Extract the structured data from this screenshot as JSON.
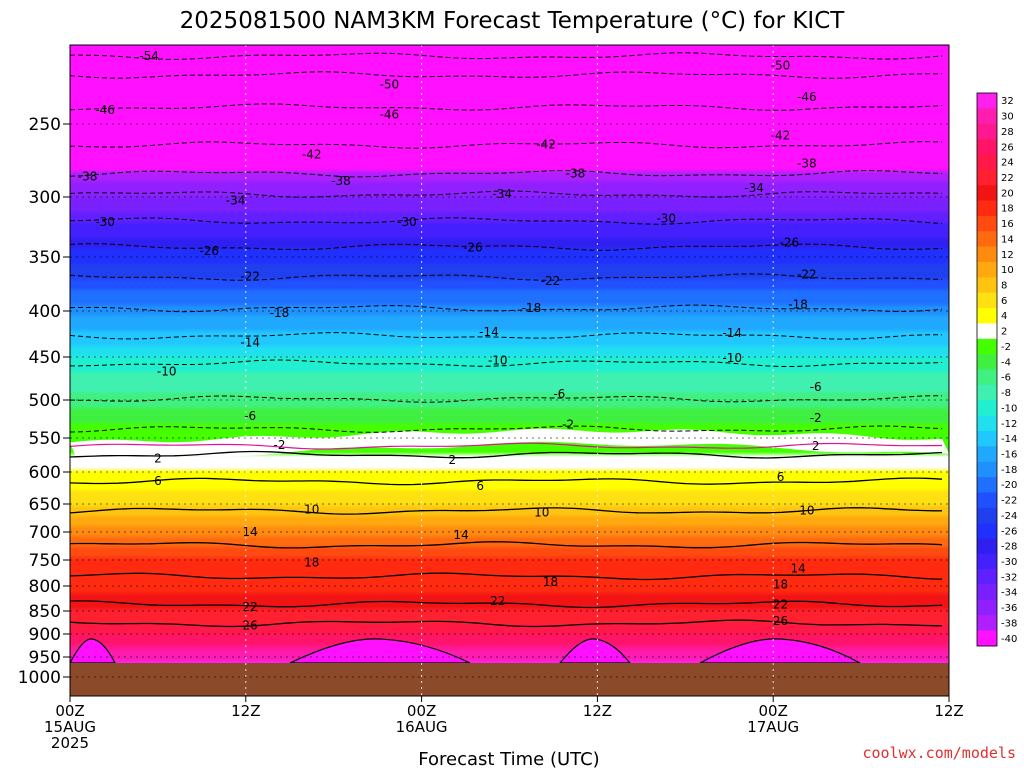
{
  "chart_data": {
    "type": "heatmap",
    "title": "2025081500 NAM3KM Forecast Temperature (°C) for KICT",
    "xlabel": "Forecast Time (UTC)",
    "ylabel": "",
    "credit": "coolwx.com/models",
    "x_ticks": [
      {
        "hour": 0,
        "lines": [
          "00Z",
          "15AUG",
          "2025"
        ]
      },
      {
        "hour": 12,
        "lines": [
          "12Z"
        ]
      },
      {
        "hour": 24,
        "lines": [
          "00Z",
          "16AUG"
        ]
      },
      {
        "hour": 36,
        "lines": [
          "12Z"
        ]
      },
      {
        "hour": 48,
        "lines": [
          "00Z",
          "17AUG"
        ]
      },
      {
        "hour": 60,
        "lines": [
          "12Z"
        ]
      }
    ],
    "xlim_hours": [
      0,
      60
    ],
    "y_ticks_hpa": [
      250,
      300,
      350,
      400,
      450,
      500,
      550,
      600,
      650,
      700,
      750,
      800,
      850,
      900,
      950,
      1000
    ],
    "ylim_hpa": [
      200,
      1050
    ],
    "ground_level_hpa": 965,
    "colorbar": {
      "labels": [
        "32",
        "30",
        "28",
        "26",
        "24",
        "22",
        "20",
        "18",
        "16",
        "14",
        "12",
        "10",
        "8",
        "6",
        "4",
        "2",
        "-2",
        "-4",
        "-6",
        "-8",
        "-10",
        "-12",
        "-14",
        "-16",
        "-18",
        "-20",
        "-22",
        "-24",
        "-26",
        "-28",
        "-30",
        "-32",
        "-34",
        "-36",
        "-38",
        "-40"
      ],
      "colors": [
        "#ff20f0",
        "#ff1cb0",
        "#ff1890",
        "#ff1468",
        "#ff1848",
        "#ff2030",
        "#f21414",
        "#ff2a10",
        "#ff4a10",
        "#ff6a10",
        "#ff8a10",
        "#ffa810",
        "#ffc410",
        "#ffe010",
        "#ffff00",
        "#ffffff",
        "#44ff00",
        "#40f040",
        "#40f080",
        "#40f0b0",
        "#20f0d0",
        "#20e0f0",
        "#20c8ff",
        "#20a8ff",
        "#2090ff",
        "#2070ff",
        "#2050ff",
        "#2040f0",
        "#2030ff",
        "#3020f0",
        "#4420ff",
        "#6020ff",
        "#7a20ff",
        "#9020ff",
        "#b020ff",
        "#ff10ff"
      ]
    },
    "temperature_profile_by_pressure": [
      {
        "hpa": 200,
        "t": -56
      },
      {
        "hpa": 250,
        "t": -45
      },
      {
        "hpa": 300,
        "t": -34
      },
      {
        "hpa": 350,
        "t": -25
      },
      {
        "hpa": 400,
        "t": -17
      },
      {
        "hpa": 450,
        "t": -10
      },
      {
        "hpa": 500,
        "t": -5
      },
      {
        "hpa": 550,
        "t": 0
      },
      {
        "hpa": 600,
        "t": 4
      },
      {
        "hpa": 650,
        "t": 8
      },
      {
        "hpa": 700,
        "t": 13
      },
      {
        "hpa": 750,
        "t": 18
      },
      {
        "hpa": 800,
        "t": 19
      },
      {
        "hpa": 850,
        "t": 22
      },
      {
        "hpa": 900,
        "t": 26
      },
      {
        "hpa": 950,
        "t": 31
      },
      {
        "hpa": 965,
        "t": 32
      }
    ],
    "contour_labels": [
      {
        "v": "-54",
        "hour": 5.4,
        "hpa": 207
      },
      {
        "v": "-50",
        "hour": 21.8,
        "hpa": 225
      },
      {
        "v": "-50",
        "hour": 48.5,
        "hpa": 213
      },
      {
        "v": "-46",
        "hour": 2.4,
        "hpa": 241
      },
      {
        "v": "-46",
        "hour": 21.8,
        "hpa": 244
      },
      {
        "v": "-46",
        "hour": 50.3,
        "hpa": 233
      },
      {
        "v": "-42",
        "hour": 16.5,
        "hpa": 271
      },
      {
        "v": "-42",
        "hour": 32.5,
        "hpa": 264
      },
      {
        "v": "-42",
        "hour": 48.5,
        "hpa": 258
      },
      {
        "v": "-38",
        "hour": 1.2,
        "hpa": 286
      },
      {
        "v": "-38",
        "hour": 18.5,
        "hpa": 289
      },
      {
        "v": "-38",
        "hour": 34.5,
        "hpa": 284
      },
      {
        "v": "-38",
        "hour": 50.3,
        "hpa": 277
      },
      {
        "v": "-34",
        "hour": 11.3,
        "hpa": 303
      },
      {
        "v": "-34",
        "hour": 29.5,
        "hpa": 298
      },
      {
        "v": "-34",
        "hour": 46.7,
        "hpa": 294
      },
      {
        "v": "-30",
        "hour": 2.4,
        "hpa": 321
      },
      {
        "v": "-30",
        "hour": 23,
        "hpa": 321
      },
      {
        "v": "-30",
        "hour": 40.7,
        "hpa": 318
      },
      {
        "v": "-26",
        "hour": 9.5,
        "hpa": 345
      },
      {
        "v": "-26",
        "hour": 27.5,
        "hpa": 342
      },
      {
        "v": "-26",
        "hour": 49.1,
        "hpa": 338
      },
      {
        "v": "-22",
        "hour": 12.3,
        "hpa": 368
      },
      {
        "v": "-22",
        "hour": 32.8,
        "hpa": 372
      },
      {
        "v": "-22",
        "hour": 50.3,
        "hpa": 366
      },
      {
        "v": "-18",
        "hour": 14.3,
        "hpa": 402
      },
      {
        "v": "-18",
        "hour": 31.5,
        "hpa": 397
      },
      {
        "v": "-18",
        "hour": 49.7,
        "hpa": 394
      },
      {
        "v": "-14",
        "hour": 12.3,
        "hpa": 434
      },
      {
        "v": "-14",
        "hour": 28.6,
        "hpa": 423
      },
      {
        "v": "-14",
        "hour": 45.2,
        "hpa": 424
      },
      {
        "v": "-10",
        "hour": 6.6,
        "hpa": 467
      },
      {
        "v": "-10",
        "hour": 29.2,
        "hpa": 454
      },
      {
        "v": "-10",
        "hour": 45.2,
        "hpa": 451
      },
      {
        "v": "-6",
        "hour": 12.3,
        "hpa": 521
      },
      {
        "v": "-6",
        "hour": 33.4,
        "hpa": 493
      },
      {
        "v": "-6",
        "hour": 50.9,
        "hpa": 485
      },
      {
        "v": "-2",
        "hour": 14.3,
        "hpa": 560
      },
      {
        "v": "-2",
        "hour": 34,
        "hpa": 532
      },
      {
        "v": "-2",
        "hour": 50.9,
        "hpa": 524
      },
      {
        "v": "2",
        "hour": 6,
        "hpa": 580
      },
      {
        "v": "2",
        "hour": 26.1,
        "hpa": 582
      },
      {
        "v": "2",
        "hour": 50.9,
        "hpa": 562
      },
      {
        "v": "6",
        "hour": 6,
        "hpa": 614
      },
      {
        "v": "6",
        "hour": 28,
        "hpa": 622
      },
      {
        "v": "6",
        "hour": 48.5,
        "hpa": 608
      },
      {
        "v": "10",
        "hour": 16.5,
        "hpa": 660
      },
      {
        "v": "10",
        "hour": 32.2,
        "hpa": 665
      },
      {
        "v": "10",
        "hour": 50.3,
        "hpa": 662
      },
      {
        "v": "14",
        "hour": 12.3,
        "hpa": 700
      },
      {
        "v": "14",
        "hour": 26.7,
        "hpa": 705
      },
      {
        "v": "14",
        "hour": 49.7,
        "hpa": 766
      },
      {
        "v": "18",
        "hour": 16.5,
        "hpa": 755
      },
      {
        "v": "18",
        "hour": 32.8,
        "hpa": 792
      },
      {
        "v": "18",
        "hour": 48.5,
        "hpa": 797
      },
      {
        "v": "22",
        "hour": 12.3,
        "hpa": 842
      },
      {
        "v": "22",
        "hour": 29.2,
        "hpa": 830
      },
      {
        "v": "22",
        "hour": 48.5,
        "hpa": 837
      },
      {
        "v": "26",
        "hour": 12.3,
        "hpa": 882
      },
      {
        "v": "26",
        "hour": 48.5,
        "hpa": 872
      }
    ]
  }
}
